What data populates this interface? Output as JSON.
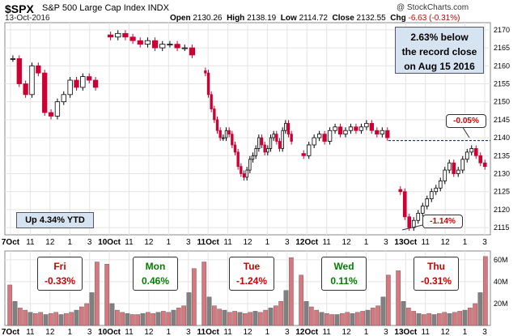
{
  "header": {
    "symbol": "$SPX",
    "name": "S&P 500 Large Cap Index  INDX",
    "date": "13-Oct-2016",
    "open_label": "Open",
    "open": "2130.26",
    "high_label": "High",
    "high": "2138.19",
    "low_label": "Low",
    "low": "2114.72",
    "close_label": "Close",
    "close": "2132.55",
    "chg_label": "Chg",
    "chg": "-6.63 (-0.31%)",
    "watermark": "@ StockCharts.com"
  },
  "annotations": {
    "record_line1": "2.63% below",
    "record_line2": "the record close",
    "record_line3": "on Aug 15 2016",
    "ytd": "Up 4.34% YTD",
    "callout_top": "-0.05%",
    "callout_bottom": "-1.14%"
  },
  "days": [
    {
      "day": "Fri",
      "change": "-0.33%",
      "sign": "neg"
    },
    {
      "day": "Mon",
      "change": "0.46%",
      "sign": "pos"
    },
    {
      "day": "Tue",
      "change": "-1.24%",
      "sign": "neg"
    },
    {
      "day": "Wed",
      "change": "0.11%",
      "sign": "pos"
    },
    {
      "day": "Thu",
      "change": "-0.31%",
      "sign": "neg"
    }
  ],
  "colors": {
    "up_candle": "#000000",
    "down_candle": "#cc0033",
    "vol_up": "#808080",
    "vol_down": "#d9777f",
    "record_line": "#0000cc",
    "grid": "#e4e4e4",
    "annotation_fill": "#d6e4f2"
  },
  "chart_data": {
    "type": "candlestick",
    "price_axis": {
      "ticks": [
        2115,
        2120,
        2125,
        2130,
        2135,
        2140,
        2145,
        2150,
        2155,
        2160,
        2165,
        2170
      ],
      "range": [
        2113,
        2172
      ]
    },
    "volume_axis": {
      "ticks_labels": [
        "20M",
        "40M",
        "60M"
      ],
      "ticks": [
        20,
        40,
        60
      ],
      "range": [
        0,
        68
      ]
    },
    "x_tick_labels": [
      "7Oct",
      "11",
      "12",
      "1",
      "3",
      "10Oct",
      "11",
      "12",
      "1",
      "3",
      "11Oct",
      "11",
      "12",
      "1",
      "3",
      "12Oct",
      "11",
      "12",
      "1",
      "3",
      "13Oct",
      "11",
      "12",
      "1",
      "3"
    ],
    "days": [
      "7Oct",
      "10Oct",
      "11Oct",
      "12Oct",
      "13Oct"
    ],
    "record_close_level": 2139.2,
    "price_segments": [
      [
        2162,
        2155,
        2152,
        2160,
        2158,
        2147,
        2146,
        2150,
        2152,
        2156,
        2154,
        2157,
        2156,
        2154
      ],
      [
        2168,
        2169,
        2168,
        2167,
        2166,
        2167,
        2165,
        2166,
        2166,
        2165,
        2165,
        2163
      ],
      [
        2158,
        2152,
        2148,
        2145,
        2142,
        2140,
        2140,
        2142,
        2141,
        2138,
        2136,
        2132,
        2130,
        2129,
        2131,
        2134,
        2135,
        2137,
        2140,
        2138,
        2136,
        2137,
        2140,
        2141,
        2139,
        2137,
        2142,
        2144,
        2141,
        2139
      ],
      [
        2135,
        2138,
        2140,
        2141,
        2139,
        2142,
        2143,
        2141,
        2142,
        2143,
        2142,
        2143,
        2144,
        2142,
        2141,
        2142,
        2140
      ],
      [
        2125,
        2118,
        2115,
        2117,
        2119,
        2121,
        2123,
        2125,
        2126,
        2128,
        2131,
        2133,
        2130,
        2131,
        2134,
        2136,
        2137,
        2135,
        2133,
        2132
      ]
    ],
    "volume_segments": [
      [
        37,
        22,
        16,
        14,
        12,
        11,
        12,
        10,
        11,
        12,
        10,
        11,
        12,
        14,
        17,
        20,
        30,
        58
      ],
      [
        56,
        20,
        14,
        12,
        11,
        10,
        10,
        11,
        12,
        11,
        12,
        13,
        12,
        14,
        16,
        18,
        30,
        52
      ],
      [
        58,
        26,
        18,
        15,
        14,
        12,
        13,
        12,
        11,
        12,
        13,
        12,
        14,
        16,
        18,
        22,
        32,
        62
      ],
      [
        46,
        22,
        17,
        14,
        12,
        11,
        10,
        10,
        11,
        12,
        11,
        12,
        13,
        14,
        16,
        18,
        26,
        46
      ],
      [
        50,
        22,
        16,
        13,
        11,
        10,
        11,
        10,
        11,
        12,
        11,
        12,
        13,
        14,
        16,
        20,
        30,
        63
      ]
    ]
  }
}
